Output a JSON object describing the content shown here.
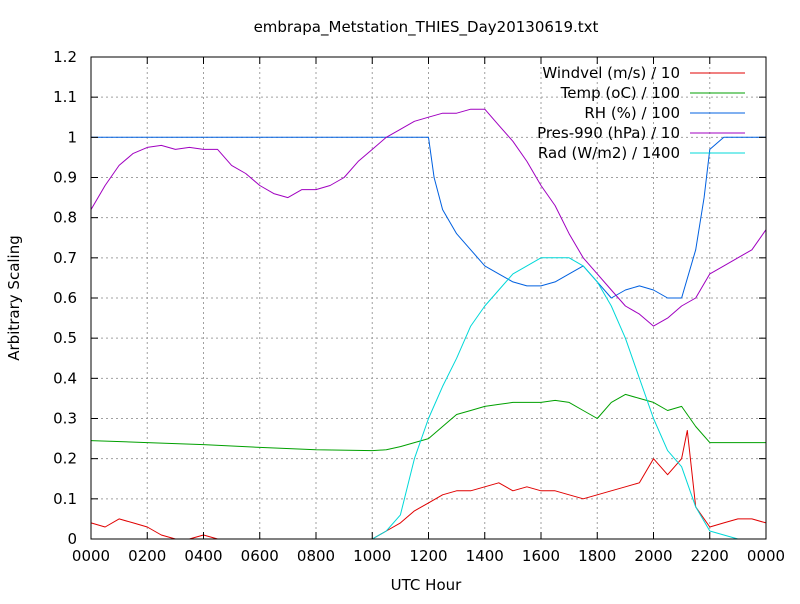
{
  "chart_data": {
    "type": "line",
    "title": "embrapa_Metstation_THIES_Day20130619.txt",
    "xlabel": "UTC Hour",
    "ylabel": "Arbitrary Scaling",
    "xlim": [
      0,
      24
    ],
    "ylim": [
      0,
      1.2
    ],
    "x_ticks": [
      "0000",
      "0200",
      "0400",
      "0600",
      "0800",
      "1000",
      "1200",
      "1400",
      "1600",
      "1800",
      "2000",
      "2200",
      "0000"
    ],
    "y_ticks": [
      "0",
      "0.1",
      "0.2",
      "0.3",
      "0.4",
      "0.5",
      "0.6",
      "0.7",
      "0.8",
      "0.9",
      "1",
      "1.1",
      "1.2"
    ],
    "grid": true,
    "legend_position": "top-right",
    "series": [
      {
        "name": "Windvel (m/s) / 10",
        "color": "#e00000",
        "x": [
          0,
          0.5,
          1,
          1.5,
          2,
          2.5,
          3,
          3.5,
          4,
          4.5,
          5,
          5.5,
          6,
          6.5,
          7,
          7.5,
          8,
          8.5,
          9,
          9.5,
          10,
          10.5,
          11,
          11.5,
          12,
          12.5,
          13,
          13.5,
          14,
          14.5,
          15,
          15.5,
          16,
          16.5,
          17,
          17.5,
          18,
          18.5,
          19,
          19.5,
          20,
          20.5,
          21,
          21.2,
          21.5,
          22,
          22.5,
          23,
          23.5,
          24
        ],
        "y": [
          0.04,
          0.03,
          0.05,
          0.04,
          0.03,
          0.01,
          0.0,
          0.0,
          0.01,
          0.0,
          0.0,
          0.0,
          0.0,
          0.0,
          0.0,
          0.0,
          0.0,
          0.0,
          0.0,
          0.0,
          0.0,
          0.02,
          0.04,
          0.07,
          0.09,
          0.11,
          0.12,
          0.12,
          0.13,
          0.14,
          0.12,
          0.13,
          0.12,
          0.12,
          0.11,
          0.1,
          0.11,
          0.12,
          0.13,
          0.14,
          0.2,
          0.16,
          0.2,
          0.27,
          0.08,
          0.03,
          0.04,
          0.05,
          0.05,
          0.04
        ]
      },
      {
        "name": "Temp (oC) / 100",
        "color": "#00a000",
        "x": [
          0,
          2,
          4,
          6,
          8,
          10,
          10.5,
          11,
          11.5,
          12,
          12.5,
          13,
          13.5,
          14,
          14.5,
          15,
          15.5,
          16,
          16.5,
          17,
          17.5,
          18,
          18.5,
          19,
          19.5,
          20,
          20.5,
          21,
          21.5,
          22,
          23,
          24
        ],
        "y": [
          0.245,
          0.24,
          0.235,
          0.228,
          0.222,
          0.22,
          0.222,
          0.23,
          0.24,
          0.25,
          0.28,
          0.31,
          0.32,
          0.33,
          0.335,
          0.34,
          0.34,
          0.34,
          0.345,
          0.34,
          0.32,
          0.3,
          0.34,
          0.36,
          0.35,
          0.34,
          0.32,
          0.33,
          0.28,
          0.24,
          0.24,
          0.24
        ]
      },
      {
        "name": "RH (%) / 100",
        "color": "#0060e0",
        "x": [
          0,
          4,
          8,
          12,
          12.2,
          12.5,
          13,
          13.5,
          14,
          14.5,
          15,
          15.5,
          16,
          16.5,
          17,
          17.5,
          18,
          18.5,
          19,
          19.5,
          20,
          20.5,
          21,
          21.5,
          21.8,
          22,
          22.5,
          23,
          24
        ],
        "y": [
          1.0,
          1.0,
          1.0,
          1.0,
          0.9,
          0.82,
          0.76,
          0.72,
          0.68,
          0.66,
          0.64,
          0.63,
          0.63,
          0.64,
          0.66,
          0.68,
          0.64,
          0.6,
          0.62,
          0.63,
          0.62,
          0.6,
          0.6,
          0.72,
          0.85,
          0.97,
          1.0,
          1.0,
          1.0
        ]
      },
      {
        "name": "Pres-990 (hPa) / 10",
        "color": "#a000c0",
        "x": [
          0,
          0.5,
          1,
          1.5,
          2,
          2.5,
          3,
          3.5,
          4,
          4.5,
          5,
          5.5,
          6,
          6.5,
          7,
          7.5,
          8,
          8.5,
          9,
          9.5,
          10,
          10.5,
          11,
          11.5,
          12,
          12.5,
          13,
          13.5,
          14,
          14.5,
          15,
          15.5,
          16,
          16.5,
          17,
          17.5,
          18,
          18.5,
          19,
          19.5,
          20,
          20.5,
          21,
          21.5,
          22,
          22.5,
          23,
          23.5,
          24
        ],
        "y": [
          0.82,
          0.88,
          0.93,
          0.96,
          0.975,
          0.98,
          0.97,
          0.975,
          0.97,
          0.97,
          0.93,
          0.91,
          0.88,
          0.86,
          0.85,
          0.87,
          0.87,
          0.88,
          0.9,
          0.94,
          0.97,
          1.0,
          1.02,
          1.04,
          1.05,
          1.06,
          1.06,
          1.07,
          1.07,
          1.03,
          0.99,
          0.94,
          0.88,
          0.83,
          0.76,
          0.7,
          0.66,
          0.62,
          0.58,
          0.56,
          0.53,
          0.55,
          0.58,
          0.6,
          0.66,
          0.68,
          0.7,
          0.72,
          0.77
        ]
      },
      {
        "name": "Rad (W/m2) / 1400",
        "color": "#00d8d8",
        "x": [
          0,
          2,
          4,
          6,
          8,
          10,
          10.5,
          11,
          11.5,
          12,
          12.5,
          13,
          13.5,
          14,
          14.5,
          15,
          15.5,
          16,
          16.5,
          17,
          17.5,
          18,
          18.5,
          19,
          19.5,
          20,
          20.5,
          21,
          21.5,
          22,
          23,
          24
        ],
        "y": [
          0.0,
          0.0,
          0.0,
          0.0,
          0.0,
          0.0,
          0.02,
          0.06,
          0.2,
          0.3,
          0.38,
          0.45,
          0.53,
          0.58,
          0.62,
          0.66,
          0.68,
          0.7,
          0.7,
          0.7,
          0.68,
          0.64,
          0.58,
          0.5,
          0.4,
          0.3,
          0.22,
          0.18,
          0.08,
          0.02,
          0.0,
          0.0
        ]
      }
    ]
  }
}
